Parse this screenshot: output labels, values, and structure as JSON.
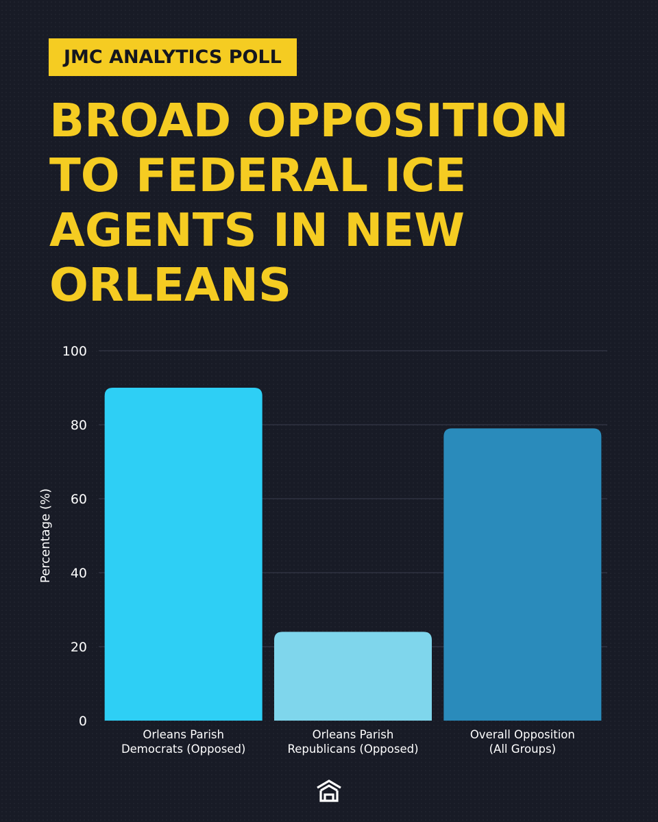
{
  "header": {
    "badge": "JMC ANALYTICS POLL",
    "title_lines": [
      "BROAD OPPOSITION",
      "TO FEDERAL ICE",
      "AGENTS IN NEW",
      "ORLEANS"
    ]
  },
  "brand": {
    "accent": "#f5cc22",
    "background": "#181b26",
    "logo_icon": "house-icon"
  },
  "chart_data": {
    "type": "bar",
    "title": "BROAD OPPOSITION TO FEDERAL ICE AGENTS IN NEW ORLEANS",
    "xlabel": "",
    "ylabel": "Percentage (%)",
    "ylim": [
      0,
      100
    ],
    "yticks": [
      0,
      20,
      40,
      60,
      80,
      100
    ],
    "grid": true,
    "categories": [
      [
        "Orleans Parish",
        "Democrats (Opposed)"
      ],
      [
        "Orleans Parish",
        "Republicans (Opposed)"
      ],
      [
        "Overall Opposition",
        "(All Groups)"
      ]
    ],
    "values": [
      90,
      24,
      79
    ],
    "colors": [
      "#2ecff5",
      "#7fd6ec",
      "#2a8bbb"
    ]
  }
}
